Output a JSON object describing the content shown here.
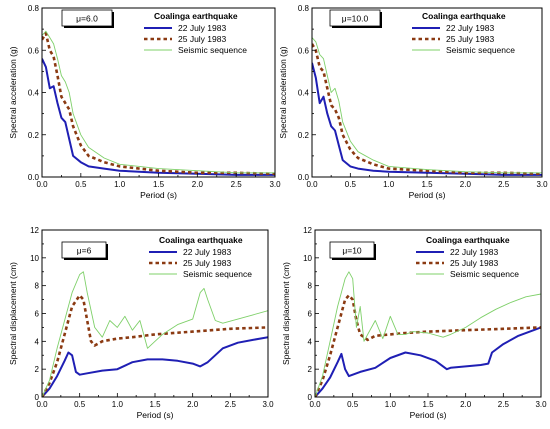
{
  "figure": {
    "colors": {
      "series_22_july": "#1f1fb4",
      "series_25_july": "#8b3a12",
      "series_sequence": "#7fd06a",
      "axis": "#000000",
      "background": "#ffffff"
    }
  },
  "chart_data": [
    {
      "type": "line",
      "panel": "top-left",
      "mu_label": "μ=6.0",
      "legend_title": "Coalinga earthquake",
      "legend_position": "top-right",
      "xlabel": "Period (s)",
      "ylabel": "Spectral acceleration (g)",
      "xlim": [
        0,
        3.0
      ],
      "ylim": [
        0,
        0.8
      ],
      "xticks": [
        "0.0",
        "0.5",
        "1.0",
        "1.5",
        "2.0",
        "2.5",
        "3.0"
      ],
      "yticks": [
        "0.0",
        "0.2",
        "0.4",
        "0.6",
        "0.8"
      ],
      "grid": false,
      "series": [
        {
          "name": "22 July 1983",
          "style": "solid",
          "x": [
            0,
            0.05,
            0.1,
            0.15,
            0.2,
            0.25,
            0.3,
            0.35,
            0.4,
            0.5,
            0.6,
            0.8,
            1.0,
            1.5,
            2.0,
            2.5,
            3.0
          ],
          "y": [
            0.56,
            0.52,
            0.42,
            0.43,
            0.35,
            0.28,
            0.26,
            0.18,
            0.1,
            0.07,
            0.05,
            0.04,
            0.03,
            0.02,
            0.015,
            0.01,
            0.01
          ]
        },
        {
          "name": "25 July 1983",
          "style": "dashed",
          "x": [
            0,
            0.05,
            0.1,
            0.15,
            0.2,
            0.25,
            0.3,
            0.35,
            0.4,
            0.5,
            0.6,
            0.8,
            1.0,
            1.5,
            2.0,
            2.5,
            3.0
          ],
          "y": [
            0.65,
            0.68,
            0.6,
            0.57,
            0.48,
            0.38,
            0.35,
            0.32,
            0.24,
            0.15,
            0.1,
            0.07,
            0.05,
            0.03,
            0.02,
            0.02,
            0.015
          ]
        },
        {
          "name": "Seismic sequence",
          "style": "thin",
          "x": [
            0,
            0.05,
            0.1,
            0.15,
            0.2,
            0.25,
            0.3,
            0.35,
            0.4,
            0.5,
            0.6,
            0.8,
            1.0,
            1.5,
            2.0,
            2.5,
            3.0
          ],
          "y": [
            0.67,
            0.69,
            0.66,
            0.63,
            0.56,
            0.48,
            0.45,
            0.4,
            0.3,
            0.2,
            0.14,
            0.09,
            0.06,
            0.04,
            0.03,
            0.02,
            0.02
          ]
        }
      ]
    },
    {
      "type": "line",
      "panel": "top-right",
      "mu_label": "μ=10.0",
      "legend_title": "Coalinga earthquake",
      "legend_position": "top-right",
      "xlabel": "Period (s)",
      "ylabel": "Spectral acceleration (g)",
      "xlim": [
        0,
        3.0
      ],
      "ylim": [
        0,
        0.8
      ],
      "xticks": [
        "0.0",
        "0.5",
        "1.0",
        "1.5",
        "2.0",
        "2.5",
        "3.0"
      ],
      "yticks": [
        "0.0",
        "0.2",
        "0.4",
        "0.6",
        "0.8"
      ],
      "grid": false,
      "series": [
        {
          "name": "22 July 1983",
          "style": "solid",
          "x": [
            0,
            0.05,
            0.1,
            0.15,
            0.2,
            0.25,
            0.3,
            0.35,
            0.4,
            0.5,
            0.6,
            0.8,
            1.0,
            1.5,
            2.0,
            2.5,
            3.0
          ],
          "y": [
            0.54,
            0.47,
            0.35,
            0.38,
            0.3,
            0.24,
            0.22,
            0.15,
            0.08,
            0.05,
            0.04,
            0.03,
            0.025,
            0.02,
            0.015,
            0.01,
            0.01
          ]
        },
        {
          "name": "25 July 1983",
          "style": "dashed",
          "x": [
            0,
            0.05,
            0.1,
            0.15,
            0.2,
            0.25,
            0.3,
            0.35,
            0.4,
            0.5,
            0.6,
            0.8,
            1.0,
            1.5,
            2.0,
            2.5,
            3.0
          ],
          "y": [
            0.63,
            0.6,
            0.52,
            0.5,
            0.42,
            0.34,
            0.32,
            0.28,
            0.2,
            0.13,
            0.09,
            0.06,
            0.04,
            0.03,
            0.02,
            0.02,
            0.015
          ]
        },
        {
          "name": "Seismic sequence",
          "style": "thin",
          "x": [
            0,
            0.05,
            0.1,
            0.15,
            0.2,
            0.25,
            0.3,
            0.35,
            0.4,
            0.5,
            0.6,
            0.8,
            1.0,
            1.5,
            2.0,
            2.5,
            3.0
          ],
          "y": [
            0.66,
            0.64,
            0.58,
            0.56,
            0.48,
            0.4,
            0.42,
            0.36,
            0.26,
            0.17,
            0.12,
            0.08,
            0.05,
            0.035,
            0.025,
            0.02,
            0.02
          ]
        }
      ]
    },
    {
      "type": "line",
      "panel": "bottom-left",
      "mu_label": "μ=6",
      "legend_title": "Coalinga earthquake",
      "legend_position": "top-right",
      "xlabel": "Period (s)",
      "ylabel": "Spectral displacement (cm)",
      "xlim": [
        0,
        3.0
      ],
      "ylim": [
        0,
        12
      ],
      "xticks": [
        "0.0",
        "0.5",
        "1.0",
        "1.5",
        "2.0",
        "2.5",
        "3.0"
      ],
      "yticks": [
        "0",
        "2",
        "4",
        "6",
        "8",
        "10",
        "12"
      ],
      "grid": false,
      "series": [
        {
          "name": "22 July 1983",
          "style": "solid",
          "x": [
            0,
            0.1,
            0.2,
            0.3,
            0.35,
            0.4,
            0.45,
            0.5,
            0.6,
            0.8,
            1.0,
            1.2,
            1.4,
            1.6,
            1.8,
            2.0,
            2.1,
            2.2,
            2.4,
            2.6,
            2.8,
            3.0
          ],
          "y": [
            0,
            0.6,
            1.5,
            2.6,
            3.2,
            3.0,
            1.8,
            1.6,
            1.7,
            1.9,
            2.0,
            2.5,
            2.7,
            2.7,
            2.6,
            2.4,
            2.2,
            2.5,
            3.5,
            3.9,
            4.1,
            4.3
          ]
        },
        {
          "name": "25 July 1983",
          "style": "dashed",
          "x": [
            0,
            0.1,
            0.2,
            0.3,
            0.4,
            0.5,
            0.55,
            0.6,
            0.65,
            0.7,
            0.8,
            1.0,
            1.2,
            1.5,
            2.0,
            2.5,
            3.0
          ],
          "y": [
            0,
            1.0,
            2.5,
            4.5,
            6.5,
            7.3,
            7.0,
            5.5,
            4.0,
            3.7,
            4.0,
            4.2,
            4.3,
            4.5,
            4.7,
            4.9,
            5.0
          ]
        },
        {
          "name": "Seismic sequence",
          "style": "thin",
          "x": [
            0,
            0.1,
            0.2,
            0.3,
            0.4,
            0.5,
            0.55,
            0.6,
            0.7,
            0.8,
            0.9,
            1.0,
            1.1,
            1.2,
            1.3,
            1.4,
            1.5,
            1.6,
            1.8,
            2.0,
            2.1,
            2.15,
            2.2,
            2.3,
            2.4,
            2.6,
            2.8,
            3.0
          ],
          "y": [
            0,
            1.2,
            3.5,
            5.5,
            7.5,
            8.8,
            9.0,
            7.5,
            5.0,
            4.3,
            5.5,
            5.0,
            5.8,
            4.8,
            5.5,
            3.5,
            4.0,
            4.5,
            5.2,
            5.6,
            7.5,
            7.8,
            7.0,
            5.5,
            5.3,
            5.6,
            5.9,
            6.2
          ]
        }
      ]
    },
    {
      "type": "line",
      "panel": "bottom-right",
      "mu_label": "μ=10",
      "legend_title": "Coalinga earthquake",
      "legend_position": "top-right",
      "xlabel": "Period (s)",
      "ylabel": "Spectral displacement (cm)",
      "xlim": [
        0,
        3.0
      ],
      "ylim": [
        0,
        12
      ],
      "xticks": [
        "0.0",
        "0.5",
        "1.0",
        "1.5",
        "2.0",
        "2.5",
        "3.0"
      ],
      "yticks": [
        "0",
        "2",
        "4",
        "6",
        "8",
        "10",
        "12"
      ],
      "grid": false,
      "series": [
        {
          "name": "22 July 1983",
          "style": "solid",
          "x": [
            0,
            0.1,
            0.2,
            0.3,
            0.35,
            0.4,
            0.45,
            0.5,
            0.6,
            0.8,
            1.0,
            1.2,
            1.4,
            1.6,
            1.75,
            1.8,
            2.0,
            2.2,
            2.3,
            2.35,
            2.5,
            2.7,
            3.0
          ],
          "y": [
            0,
            0.6,
            1.4,
            2.5,
            3.1,
            2.0,
            1.5,
            1.6,
            1.8,
            2.1,
            2.8,
            3.2,
            3.0,
            2.6,
            2.0,
            2.1,
            2.2,
            2.3,
            2.4,
            3.2,
            3.8,
            4.4,
            5.0
          ]
        },
        {
          "name": "25 July 1983",
          "style": "dashed",
          "x": [
            0,
            0.1,
            0.2,
            0.3,
            0.4,
            0.45,
            0.5,
            0.55,
            0.6,
            0.7,
            0.8,
            1.0,
            1.2,
            1.5,
            2.0,
            2.5,
            3.0
          ],
          "y": [
            0,
            1.2,
            3.0,
            5.0,
            7.0,
            7.3,
            7.0,
            5.5,
            4.5,
            4.1,
            4.4,
            4.5,
            4.6,
            4.7,
            4.8,
            4.9,
            5.0
          ]
        },
        {
          "name": "Seismic sequence",
          "style": "thin",
          "x": [
            0,
            0.1,
            0.2,
            0.3,
            0.4,
            0.45,
            0.5,
            0.55,
            0.6,
            0.65,
            0.7,
            0.8,
            0.9,
            1.0,
            1.1,
            1.2,
            1.3,
            1.5,
            1.7,
            1.8,
            2.0,
            2.2,
            2.4,
            2.6,
            2.8,
            3.0
          ],
          "y": [
            0,
            1.5,
            4.0,
            6.5,
            8.5,
            9.0,
            8.5,
            5.0,
            6.5,
            4.0,
            4.5,
            5.5,
            4.2,
            5.8,
            4.5,
            4.5,
            4.7,
            4.6,
            4.3,
            4.5,
            5.0,
            5.7,
            6.3,
            6.8,
            7.2,
            7.4
          ]
        }
      ]
    }
  ]
}
